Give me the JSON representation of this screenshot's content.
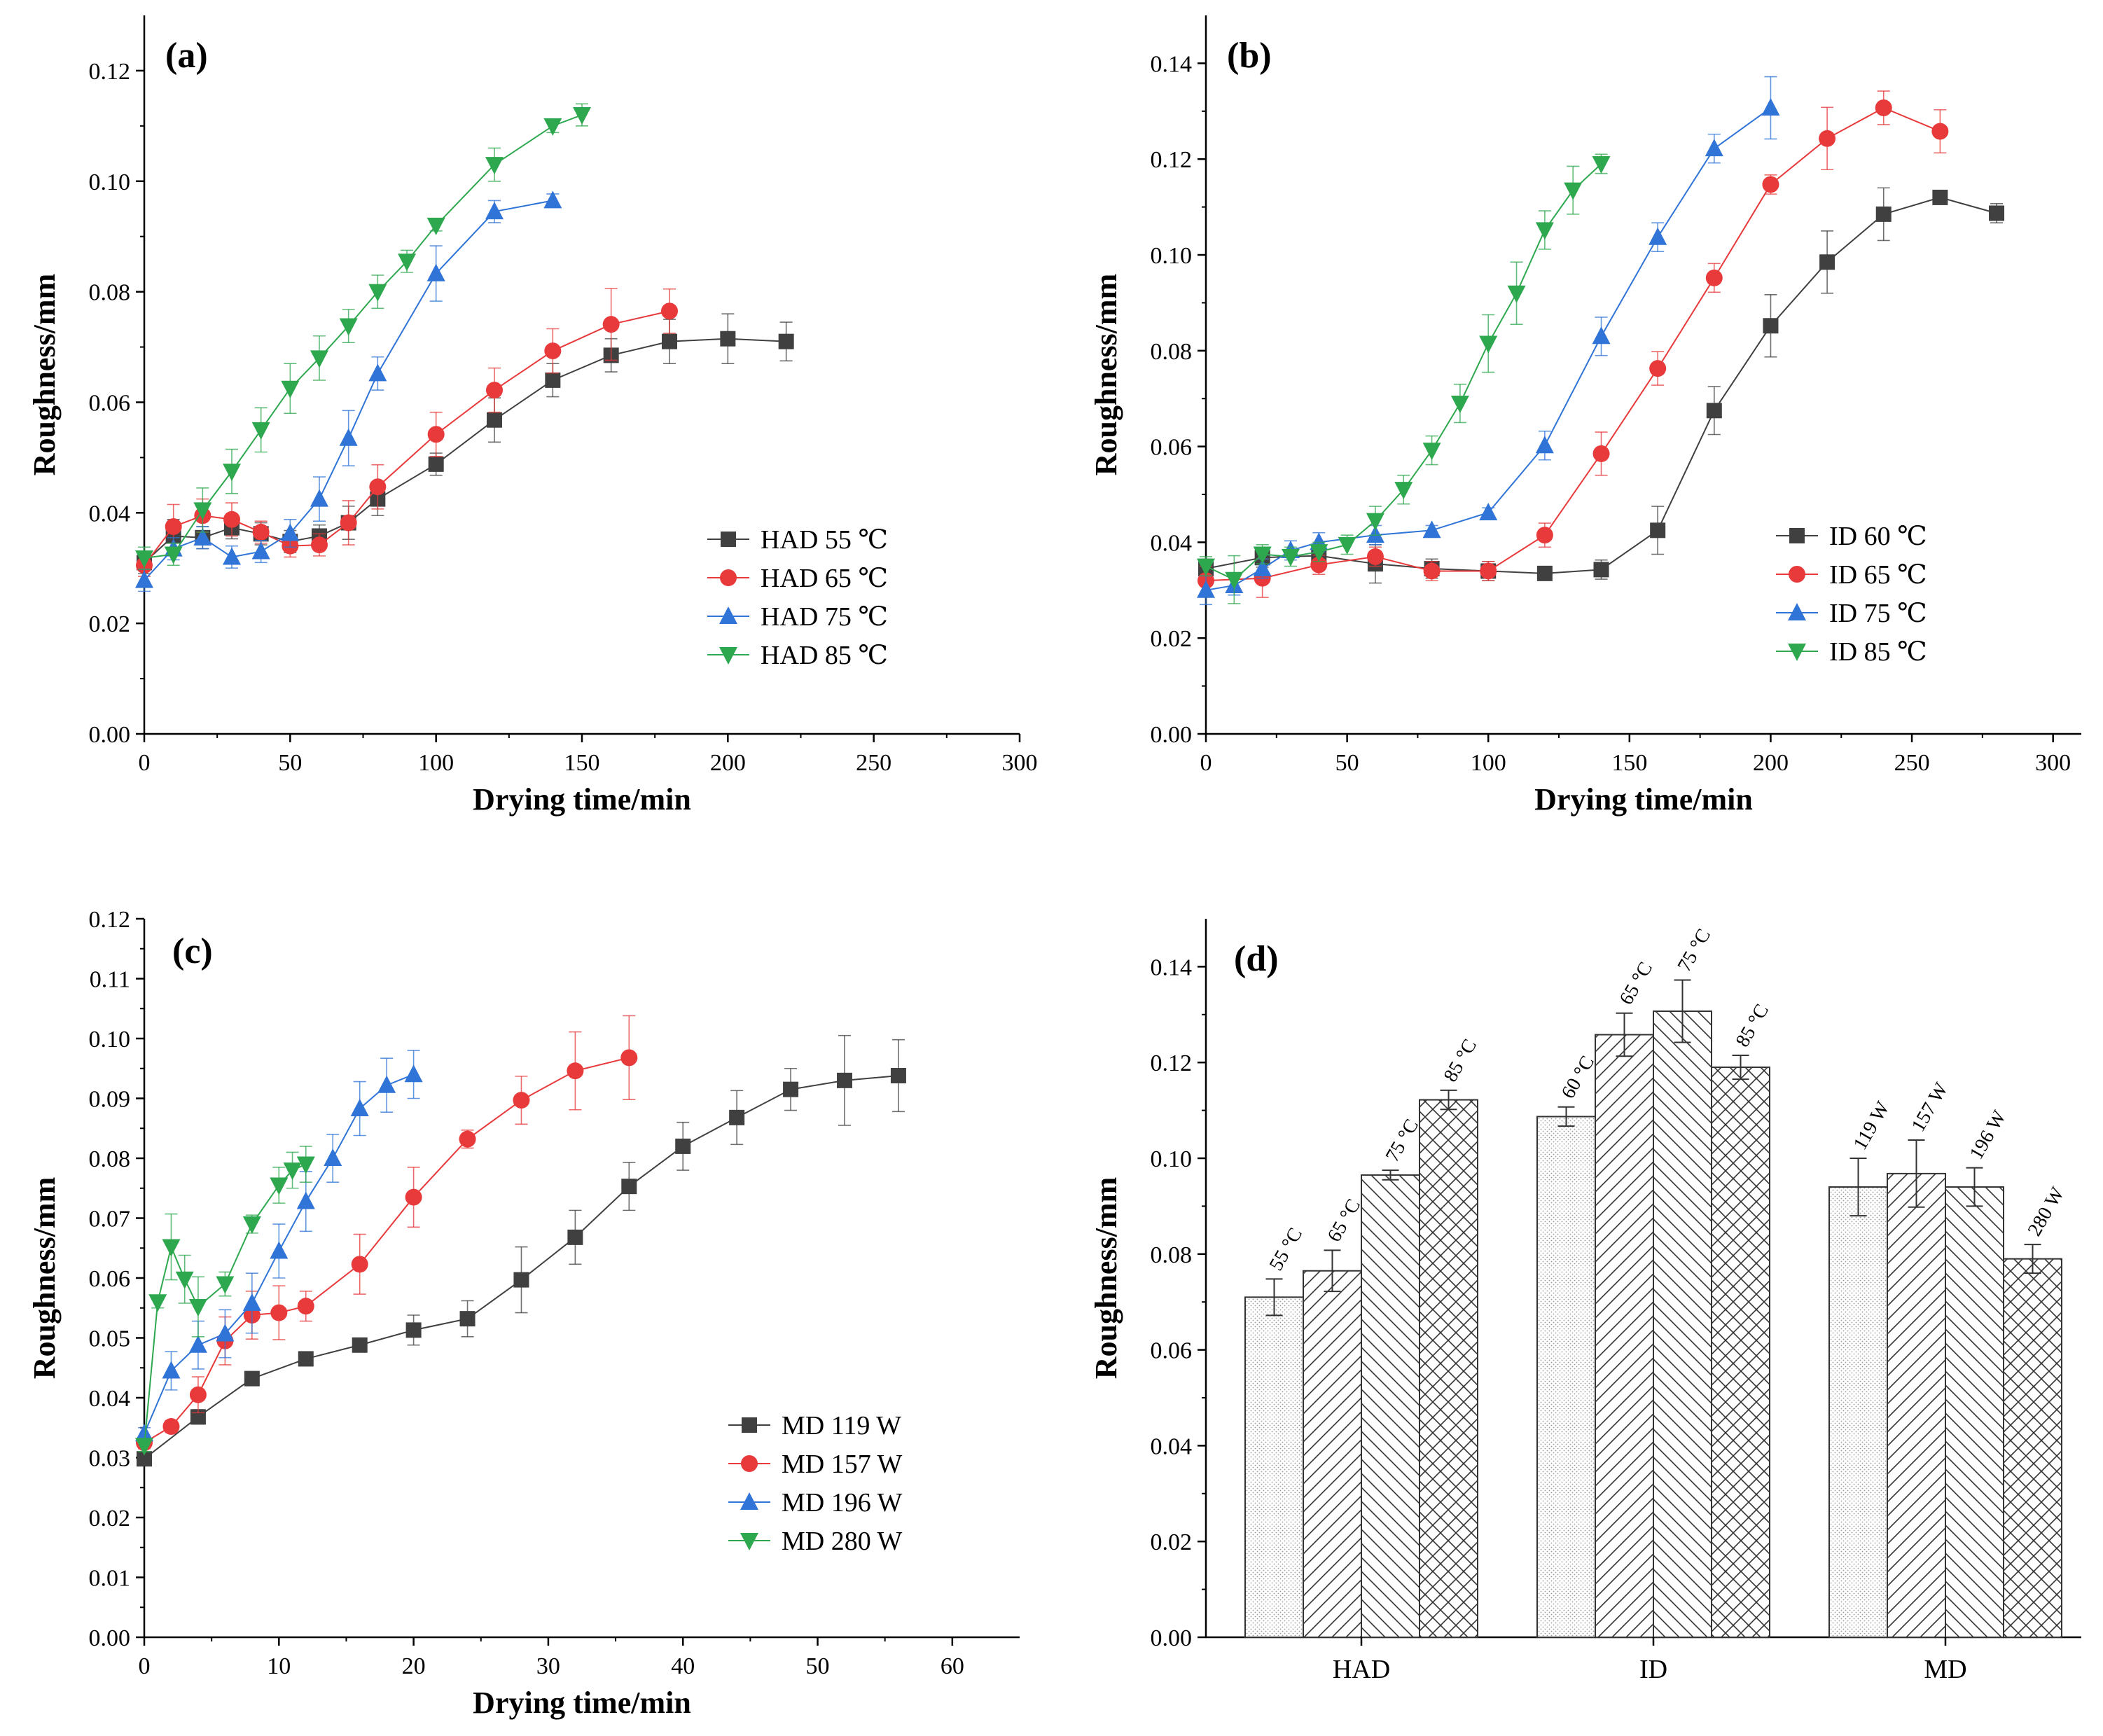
{
  "chart_data": [
    {
      "type": "line",
      "panel_label": "(a)",
      "xlabel": "Drying time/min",
      "ylabel": "Roughness/mm",
      "xlim": [
        0,
        300
      ],
      "ylim": [
        0,
        0.13
      ],
      "xticks": [
        "0",
        "50",
        "100",
        "150",
        "200",
        "250",
        "300"
      ],
      "yticks": [
        "0.00",
        "0.02",
        "0.04",
        "0.06",
        "0.08",
        "0.10",
        "0.12"
      ],
      "legend_position": "bottom-right",
      "series": [
        {
          "name": "HAD 55 ℃",
          "color": "#404040",
          "marker": "square",
          "x": [
            0,
            10,
            20,
            30,
            40,
            50,
            60,
            70,
            80,
            100,
            120,
            140,
            160,
            180,
            200,
            220
          ],
          "y": [
            0.031,
            0.0358,
            0.0355,
            0.0373,
            0.0362,
            0.0348,
            0.0358,
            0.0382,
            0.0425,
            0.0488,
            0.0568,
            0.064,
            0.0685,
            0.071,
            0.0715,
            0.071
          ],
          "err": [
            0.002,
            0.003,
            0.002,
            0.002,
            0.002,
            0.002,
            0.002,
            0.003,
            0.003,
            0.002,
            0.004,
            0.003,
            0.003,
            0.004,
            0.0045,
            0.0035
          ]
        },
        {
          "name": "HAD 65 ℃",
          "color": "#e8393b",
          "marker": "circle",
          "x": [
            0,
            10,
            20,
            30,
            40,
            50,
            60,
            70,
            80,
            100,
            120,
            140,
            160,
            180
          ],
          "y": [
            0.0305,
            0.0375,
            0.0395,
            0.0388,
            0.0365,
            0.034,
            0.0342,
            0.0382,
            0.0447,
            0.0542,
            0.0622,
            0.0693,
            0.0741,
            0.0765
          ],
          "err": [
            0.002,
            0.004,
            0.003,
            0.003,
            0.002,
            0.002,
            0.002,
            0.004,
            0.004,
            0.004,
            0.004,
            0.004,
            0.0065,
            0.004
          ]
        },
        {
          "name": "HAD 75 ℃",
          "color": "#2f74d6",
          "marker": "triangle-up",
          "x": [
            0,
            10,
            20,
            30,
            40,
            50,
            60,
            70,
            80,
            100,
            120,
            140
          ],
          "y": [
            0.0278,
            0.0335,
            0.0355,
            0.032,
            0.033,
            0.0363,
            0.0425,
            0.0535,
            0.0652,
            0.0833,
            0.0945,
            0.0965
          ],
          "err": [
            0.002,
            0.002,
            0.002,
            0.002,
            0.002,
            0.0025,
            0.004,
            0.005,
            0.003,
            0.005,
            0.002,
            0.0012
          ]
        },
        {
          "name": "HAD 85 ℃",
          "color": "#2ea84f",
          "marker": "triangle-down",
          "x": [
            0,
            10,
            20,
            30,
            40,
            50,
            60,
            70,
            80,
            90,
            100,
            120,
            140,
            150
          ],
          "y": [
            0.0318,
            0.0325,
            0.0405,
            0.0475,
            0.055,
            0.0625,
            0.068,
            0.0738,
            0.08,
            0.0855,
            0.092,
            0.103,
            0.11,
            0.112
          ],
          "err": [
            0.002,
            0.002,
            0.004,
            0.004,
            0.004,
            0.0045,
            0.004,
            0.003,
            0.003,
            0.002,
            0.001,
            0.003,
            0.0012,
            0.002
          ]
        }
      ]
    },
    {
      "type": "line",
      "panel_label": "(b)",
      "xlabel": "Drying time/min",
      "ylabel": "Roughness/mm",
      "xlim": [
        0,
        310
      ],
      "ylim": [
        0,
        0.15
      ],
      "xticks": [
        "0",
        "50",
        "100",
        "150",
        "200",
        "250",
        "300"
      ],
      "yticks": [
        "0.00",
        "0.02",
        "0.04",
        "0.06",
        "0.08",
        "0.10",
        "0.12",
        "0.14"
      ],
      "legend_position": "bottom-right",
      "series": [
        {
          "name": "ID 60 ℃",
          "color": "#404040",
          "marker": "square",
          "x": [
            0,
            20,
            40,
            60,
            80,
            100,
            120,
            140,
            160,
            180,
            200,
            220,
            240,
            260,
            280
          ],
          "y": [
            0.0345,
            0.0368,
            0.0372,
            0.0355,
            0.0345,
            0.034,
            0.0335,
            0.0343,
            0.0425,
            0.0675,
            0.0852,
            0.0985,
            0.1085,
            0.112,
            0.1087
          ],
          "err": [
            0.002,
            0.002,
            0.002,
            0.004,
            0.002,
            0.002,
            0.0008,
            0.002,
            0.005,
            0.005,
            0.0065,
            0.0065,
            0.0055,
            0.0012,
            0.002
          ]
        },
        {
          "name": "ID 65 ℃",
          "color": "#e8393b",
          "marker": "circle",
          "x": [
            0,
            20,
            40,
            60,
            80,
            100,
            120,
            140,
            160,
            180,
            200,
            220,
            240,
            260
          ],
          "y": [
            0.032,
            0.0325,
            0.0353,
            0.037,
            0.034,
            0.034,
            0.0415,
            0.0585,
            0.0763,
            0.0952,
            0.1147,
            0.1243,
            0.1307,
            0.1258
          ],
          "err": [
            0.003,
            0.004,
            0.002,
            0.002,
            0.002,
            0.002,
            0.0025,
            0.0045,
            0.0035,
            0.003,
            0.002,
            0.0065,
            0.0035,
            0.0045
          ]
        },
        {
          "name": "ID 75 ℃",
          "color": "#2f74d6",
          "marker": "triangle-up",
          "x": [
            0,
            10,
            20,
            30,
            40,
            60,
            80,
            100,
            120,
            140,
            160,
            180,
            200
          ],
          "y": [
            0.03,
            0.031,
            0.0345,
            0.0383,
            0.04,
            0.0415,
            0.0425,
            0.0462,
            0.0602,
            0.083,
            0.1037,
            0.1222,
            0.1307
          ],
          "err": [
            0.003,
            0.002,
            0.002,
            0.002,
            0.002,
            0.002,
            0.001,
            0.001,
            0.003,
            0.004,
            0.003,
            0.003,
            0.0065
          ]
        },
        {
          "name": "ID 85 ℃",
          "color": "#2ea84f",
          "marker": "triangle-down",
          "x": [
            0,
            10,
            20,
            30,
            40,
            50,
            60,
            70,
            80,
            90,
            100,
            110,
            120,
            130,
            140
          ],
          "y": [
            0.035,
            0.0322,
            0.0375,
            0.037,
            0.038,
            0.0395,
            0.0445,
            0.051,
            0.0592,
            0.069,
            0.0815,
            0.092,
            0.1052,
            0.1135,
            0.119
          ],
          "err": [
            0.002,
            0.005,
            0.002,
            0.002,
            0.002,
            0.002,
            0.003,
            0.003,
            0.003,
            0.004,
            0.006,
            0.0065,
            0.004,
            0.005,
            0.002
          ]
        }
      ]
    },
    {
      "type": "line",
      "panel_label": "(c)",
      "xlabel": "Drying time/min",
      "ylabel": "Roughness/mm",
      "xlim": [
        0,
        65
      ],
      "ylim": [
        0,
        0.12
      ],
      "xticks": [
        "0",
        "10",
        "20",
        "30",
        "40",
        "50",
        "60"
      ],
      "yticks": [
        "0.00",
        "0.01",
        "0.02",
        "0.03",
        "0.04",
        "0.05",
        "0.06",
        "0.07",
        "0.08",
        "0.09",
        "0.10",
        "0.11",
        "0.12"
      ],
      "legend_position": "bottom-right",
      "series": [
        {
          "name": "MD 119 W",
          "color": "#404040",
          "marker": "square",
          "x": [
            0,
            4,
            8,
            12,
            16,
            20,
            24,
            28,
            32,
            36,
            40,
            44,
            48,
            52,
            56
          ],
          "y": [
            0.0298,
            0.0368,
            0.0432,
            0.0465,
            0.0488,
            0.0513,
            0.0532,
            0.0597,
            0.0668,
            0.0753,
            0.082,
            0.0868,
            0.0915,
            0.093,
            0.0938
          ],
          "err": [
            0.001,
            0.0012,
            0.001,
            0.001,
            0.001,
            0.0025,
            0.003,
            0.0055,
            0.0045,
            0.004,
            0.004,
            0.0045,
            0.0035,
            0.0075,
            0.006
          ]
        },
        {
          "name": "MD 157 W",
          "color": "#e8393b",
          "marker": "circle",
          "x": [
            0,
            2,
            4,
            6,
            8,
            10,
            12,
            16,
            20,
            24,
            28,
            32,
            36
          ],
          "y": [
            0.0325,
            0.0352,
            0.0405,
            0.0495,
            0.0538,
            0.0542,
            0.0553,
            0.0623,
            0.0735,
            0.0832,
            0.0897,
            0.0946,
            0.0968
          ],
          "err": [
            0.001,
            0.001,
            0.003,
            0.004,
            0.004,
            0.0045,
            0.0025,
            0.005,
            0.005,
            0.0015,
            0.004,
            0.0065,
            0.007
          ]
        },
        {
          "name": "MD 196 W",
          "color": "#2f74d6",
          "marker": "triangle-up",
          "x": [
            0,
            2,
            4,
            6,
            8,
            10,
            12,
            14,
            16,
            18,
            20
          ],
          "y": [
            0.034,
            0.0445,
            0.0488,
            0.0507,
            0.0558,
            0.0645,
            0.0728,
            0.08,
            0.0883,
            0.0922,
            0.094
          ],
          "err": [
            0.001,
            0.0032,
            0.004,
            0.004,
            0.005,
            0.0045,
            0.005,
            0.004,
            0.0045,
            0.0045,
            0.004
          ]
        },
        {
          "name": "MD 280 W",
          "color": "#2ea84f",
          "marker": "triangle-down",
          "x": [
            0,
            1,
            2,
            3,
            4,
            6,
            8,
            10,
            11,
            12
          ],
          "y": [
            0.032,
            0.056,
            0.0652,
            0.0598,
            0.0552,
            0.059,
            0.069,
            0.0755,
            0.078,
            0.079
          ],
          "err": [
            0.001,
            0.001,
            0.0055,
            0.004,
            0.005,
            0.002,
            0.0015,
            0.003,
            0.003,
            0.003
          ]
        }
      ]
    },
    {
      "type": "bar",
      "panel_label": "(d)",
      "xlabel": "",
      "ylabel": "Roughness/mm",
      "ylim": [
        0,
        0.15
      ],
      "yticks": [
        "0.00",
        "0.02",
        "0.04",
        "0.06",
        "0.08",
        "0.10",
        "0.12",
        "0.14"
      ],
      "groups": [
        {
          "category": "HAD",
          "bars": [
            {
              "label": "55 °C",
              "value": 0.071,
              "err": 0.0038,
              "pattern": "dots"
            },
            {
              "label": "65 °C",
              "value": 0.0765,
              "err": 0.0043,
              "pattern": "diag-right"
            },
            {
              "label": "75 °C",
              "value": 0.0965,
              "err": 0.001,
              "pattern": "diag-left"
            },
            {
              "label": "85 °C",
              "value": 0.1122,
              "err": 0.002,
              "pattern": "cross"
            }
          ]
        },
        {
          "category": "ID",
          "bars": [
            {
              "label": "60 °C",
              "value": 0.1087,
              "err": 0.002,
              "pattern": "dots"
            },
            {
              "label": "65 °C",
              "value": 0.1258,
              "err": 0.0045,
              "pattern": "diag-right"
            },
            {
              "label": "75 °C",
              "value": 0.1307,
              "err": 0.0065,
              "pattern": "diag-left"
            },
            {
              "label": "85 °C",
              "value": 0.119,
              "err": 0.0025,
              "pattern": "cross"
            }
          ]
        },
        {
          "category": "MD",
          "bars": [
            {
              "label": "119 W",
              "value": 0.094,
              "err": 0.006,
              "pattern": "dots"
            },
            {
              "label": "157 W",
              "value": 0.0968,
              "err": 0.007,
              "pattern": "diag-right"
            },
            {
              "label": "196 W",
              "value": 0.094,
              "err": 0.004,
              "pattern": "diag-left"
            },
            {
              "label": "280 W",
              "value": 0.079,
              "err": 0.003,
              "pattern": "cross"
            }
          ]
        }
      ]
    }
  ]
}
